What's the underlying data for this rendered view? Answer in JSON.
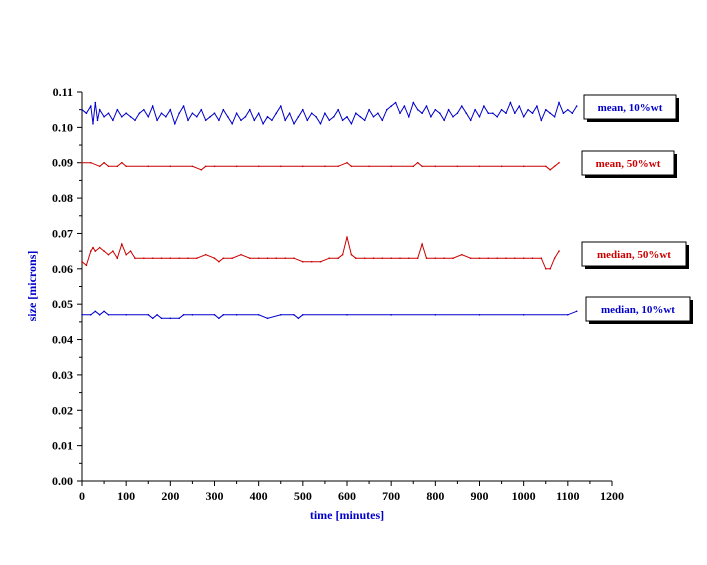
{
  "chart_data": {
    "type": "line",
    "xlabel": "time [minutes]",
    "ylabel": "size [microns]",
    "xlim": [
      0,
      1200
    ],
    "ylim": [
      0,
      0.11
    ],
    "x_ticks": [
      0,
      100,
      200,
      300,
      400,
      500,
      600,
      700,
      800,
      900,
      1000,
      1100,
      1200
    ],
    "y_ticks": [
      "0.00",
      "0.01",
      "0.02",
      "0.03",
      "0.04",
      "0.05",
      "0.06",
      "0.07",
      "0.08",
      "0.09",
      "0.10",
      "0.11"
    ],
    "grid": false,
    "legend": "labels at right end of each series",
    "series": [
      {
        "name": "mean, 10%wt",
        "color": "#0000cc",
        "x": [
          0,
          10,
          20,
          25,
          30,
          35,
          40,
          50,
          60,
          70,
          80,
          90,
          100,
          110,
          120,
          130,
          140,
          150,
          160,
          170,
          180,
          190,
          200,
          210,
          220,
          230,
          240,
          250,
          260,
          270,
          280,
          290,
          300,
          310,
          320,
          330,
          340,
          350,
          360,
          370,
          380,
          390,
          400,
          410,
          420,
          430,
          440,
          450,
          460,
          470,
          480,
          490,
          500,
          510,
          520,
          530,
          540,
          550,
          560,
          570,
          580,
          590,
          600,
          610,
          620,
          630,
          640,
          650,
          660,
          670,
          680,
          690,
          700,
          710,
          720,
          730,
          740,
          750,
          760,
          770,
          780,
          790,
          800,
          810,
          820,
          830,
          840,
          850,
          860,
          870,
          880,
          890,
          900,
          910,
          920,
          930,
          940,
          950,
          960,
          970,
          980,
          990,
          1000,
          1010,
          1020,
          1030,
          1040,
          1050,
          1060,
          1070,
          1080,
          1090,
          1100,
          1110,
          1120
        ],
        "values": [
          0.105,
          0.104,
          0.106,
          0.101,
          0.107,
          0.102,
          0.105,
          0.103,
          0.104,
          0.102,
          0.105,
          0.103,
          0.104,
          0.103,
          0.102,
          0.104,
          0.105,
          0.103,
          0.106,
          0.102,
          0.104,
          0.103,
          0.105,
          0.101,
          0.104,
          0.106,
          0.102,
          0.104,
          0.103,
          0.105,
          0.102,
          0.103,
          0.104,
          0.102,
          0.105,
          0.103,
          0.101,
          0.104,
          0.102,
          0.103,
          0.105,
          0.102,
          0.104,
          0.101,
          0.103,
          0.102,
          0.104,
          0.106,
          0.102,
          0.104,
          0.101,
          0.103,
          0.105,
          0.102,
          0.104,
          0.103,
          0.101,
          0.104,
          0.102,
          0.103,
          0.105,
          0.102,
          0.103,
          0.101,
          0.104,
          0.103,
          0.102,
          0.105,
          0.103,
          0.104,
          0.102,
          0.105,
          0.106,
          0.107,
          0.104,
          0.106,
          0.103,
          0.107,
          0.105,
          0.104,
          0.106,
          0.103,
          0.105,
          0.104,
          0.102,
          0.105,
          0.103,
          0.104,
          0.106,
          0.104,
          0.102,
          0.105,
          0.103,
          0.106,
          0.104,
          0.104,
          0.103,
          0.105,
          0.104,
          0.107,
          0.104,
          0.106,
          0.103,
          0.105,
          0.104,
          0.106,
          0.102,
          0.105,
          0.104,
          0.103,
          0.107,
          0.104,
          0.105,
          0.104,
          0.106
        ]
      },
      {
        "name": "mean, 50%wt",
        "color": "#cc0000",
        "x": [
          0,
          20,
          40,
          50,
          60,
          80,
          90,
          100,
          150,
          200,
          250,
          270,
          280,
          300,
          350,
          400,
          450,
          500,
          550,
          580,
          600,
          610,
          650,
          700,
          750,
          760,
          770,
          800,
          850,
          900,
          950,
          1000,
          1050,
          1060,
          1070,
          1080
        ],
        "values": [
          0.09,
          0.09,
          0.089,
          0.09,
          0.089,
          0.089,
          0.09,
          0.089,
          0.089,
          0.089,
          0.089,
          0.088,
          0.089,
          0.089,
          0.089,
          0.089,
          0.089,
          0.089,
          0.089,
          0.089,
          0.09,
          0.089,
          0.089,
          0.089,
          0.089,
          0.09,
          0.089,
          0.089,
          0.089,
          0.089,
          0.089,
          0.089,
          0.089,
          0.088,
          0.089,
          0.09
        ]
      },
      {
        "name": "median, 50%wt",
        "color": "#cc0000",
        "x": [
          0,
          10,
          20,
          25,
          30,
          40,
          50,
          60,
          70,
          80,
          90,
          100,
          110,
          120,
          140,
          160,
          180,
          200,
          220,
          240,
          260,
          280,
          300,
          310,
          320,
          340,
          360,
          380,
          400,
          420,
          440,
          460,
          480,
          500,
          520,
          540,
          560,
          580,
          590,
          600,
          610,
          620,
          640,
          660,
          680,
          700,
          720,
          740,
          760,
          770,
          780,
          800,
          820,
          840,
          860,
          880,
          900,
          920,
          940,
          960,
          980,
          1000,
          1020,
          1040,
          1050,
          1060,
          1070,
          1080
        ],
        "values": [
          0.062,
          0.061,
          0.065,
          0.066,
          0.065,
          0.066,
          0.065,
          0.064,
          0.065,
          0.063,
          0.067,
          0.064,
          0.065,
          0.063,
          0.063,
          0.063,
          0.063,
          0.063,
          0.063,
          0.063,
          0.063,
          0.064,
          0.063,
          0.062,
          0.063,
          0.063,
          0.064,
          0.063,
          0.063,
          0.063,
          0.063,
          0.063,
          0.063,
          0.062,
          0.062,
          0.062,
          0.063,
          0.063,
          0.064,
          0.069,
          0.064,
          0.063,
          0.063,
          0.063,
          0.063,
          0.063,
          0.063,
          0.063,
          0.063,
          0.067,
          0.063,
          0.063,
          0.063,
          0.063,
          0.064,
          0.063,
          0.063,
          0.063,
          0.063,
          0.063,
          0.063,
          0.063,
          0.063,
          0.063,
          0.06,
          0.06,
          0.063,
          0.065
        ]
      },
      {
        "name": "median, 10%wt",
        "color": "#0000cc",
        "x": [
          0,
          20,
          30,
          40,
          50,
          60,
          100,
          150,
          160,
          170,
          180,
          200,
          220,
          230,
          250,
          300,
          310,
          320,
          350,
          400,
          420,
          450,
          480,
          490,
          500,
          600,
          700,
          800,
          900,
          1000,
          1100,
          1120
        ],
        "values": [
          0.047,
          0.047,
          0.048,
          0.047,
          0.048,
          0.047,
          0.047,
          0.047,
          0.046,
          0.047,
          0.046,
          0.046,
          0.046,
          0.047,
          0.047,
          0.047,
          0.046,
          0.047,
          0.047,
          0.047,
          0.046,
          0.047,
          0.047,
          0.046,
          0.047,
          0.047,
          0.047,
          0.047,
          0.047,
          0.047,
          0.047,
          0.048
        ]
      }
    ]
  }
}
